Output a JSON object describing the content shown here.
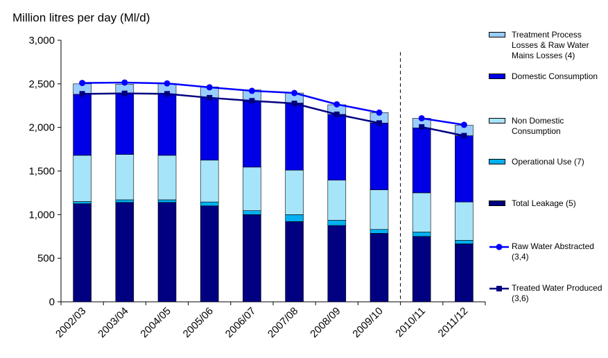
{
  "chart_data": {
    "type": "bar",
    "stacked": true,
    "ylabel": "Million litres per day (Ml/d)",
    "ylim": [
      0,
      3000
    ],
    "yticks": [
      0,
      500,
      1000,
      1500,
      2000,
      2500,
      3000
    ],
    "ytick_labels": [
      "0",
      "500",
      "1,000",
      "1,500",
      "2,000",
      "2,500",
      "3,000"
    ],
    "categories": [
      "2002/03",
      "2003/04",
      "2004/05",
      "2005/06",
      "2006/07",
      "2007/08",
      "2008/09",
      "2009/10",
      "2010/11",
      "2011/12"
    ],
    "divider_after": "2009/10",
    "series": [
      {
        "name": "Total Leakage (5)",
        "color": "#000080",
        "values": [
          1125,
          1140,
          1140,
          1100,
          1000,
          920,
          875,
          785,
          750,
          665
        ]
      },
      {
        "name": "Operational Use (7)",
        "color": "#00b0f0",
        "values": [
          25,
          30,
          30,
          45,
          45,
          80,
          60,
          45,
          50,
          40
        ]
      },
      {
        "name": "Non Domestic Consumption",
        "color": "#a6e4fa",
        "values": [
          530,
          520,
          510,
          480,
          500,
          510,
          460,
          455,
          450,
          440
        ]
      },
      {
        "name": "Domestic Consumption",
        "color": "#0000e6",
        "values": [
          700,
          700,
          705,
          715,
          755,
          770,
          755,
          765,
          745,
          760
        ]
      },
      {
        "name": "Treatment Process Losses & Raw Water Mains Losses (4)",
        "color": "#99ccff",
        "values": [
          120,
          105,
          120,
          125,
          130,
          115,
          110,
          120,
          110,
          120
        ]
      }
    ],
    "lines": [
      {
        "name": "Raw Water Abstracted (3,4)",
        "color": "#0000ff",
        "marker": "circle",
        "values": [
          2510,
          2515,
          2505,
          2460,
          2420,
          2395,
          2265,
          2170,
          2105,
          2030
        ]
      },
      {
        "name": "Treated Water Produced (3,6)",
        "color": "#000080",
        "marker": "square",
        "values": [
          2385,
          2390,
          2385,
          2340,
          2305,
          2275,
          2150,
          2050,
          2005,
          1905
        ]
      }
    ]
  },
  "legend": [
    {
      "label": "Treatment Process Losses & Raw Water Mains Losses (4)",
      "kind": "bar",
      "color": "#99ccff"
    },
    {
      "label": "Domestic Consumption",
      "kind": "bar",
      "color": "#0000e6"
    },
    {
      "label": "Non Domestic Consumption",
      "kind": "bar",
      "color": "#a6e4fa"
    },
    {
      "label": "Operational Use (7)",
      "kind": "bar",
      "color": "#00b0f0"
    },
    {
      "label": "Total Leakage (5)",
      "kind": "bar",
      "color": "#000080"
    },
    {
      "label": "Raw Water Abstracted (3,4)",
      "kind": "line",
      "color": "#0000ff",
      "marker": "circle"
    },
    {
      "label": "Treated Water Produced (3,6)",
      "kind": "line",
      "color": "#000080",
      "marker": "square"
    }
  ]
}
